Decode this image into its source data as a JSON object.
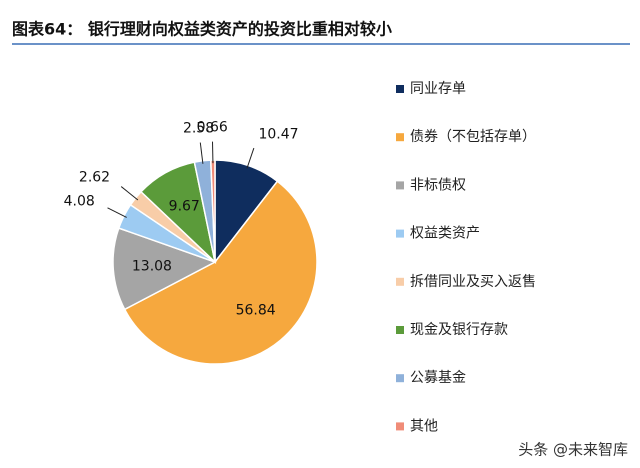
{
  "chart_data": {
    "type": "pie",
    "title": "图表64：  银行理财向权益类资产的投资比重相对较小",
    "categories": [
      "同业存单",
      "债券（不包括存单）",
      "非标债权",
      "权益类资产",
      "拆借同业及买入返售",
      "现金及银行存款",
      "公募基金",
      "其他"
    ],
    "values": [
      10.47,
      56.84,
      13.08,
      4.08,
      2.62,
      9.67,
      2.58,
      0.66
    ],
    "colors": [
      "#0f2d5e",
      "#f6a83e",
      "#a5a5a5",
      "#9dcbf2",
      "#f8cda8",
      "#5b9b3a",
      "#8fb1da",
      "#f08c78"
    ],
    "watermark": "头条 @未来智库"
  }
}
